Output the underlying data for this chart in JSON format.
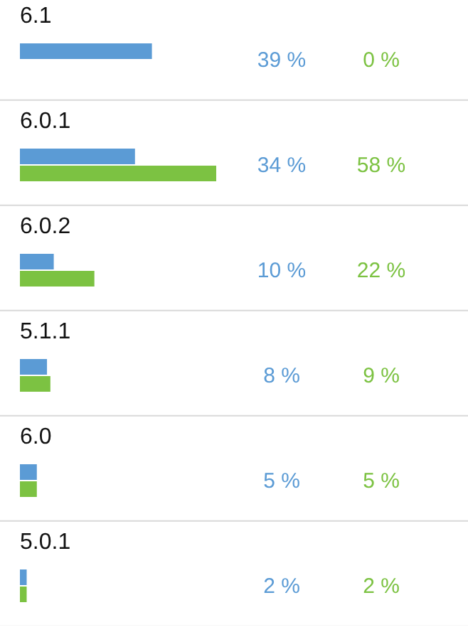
{
  "chart_data": {
    "type": "bar",
    "orientation": "horizontal",
    "categories": [
      "6.1",
      "6.0.1",
      "6.0.2",
      "5.1.1",
      "6.0",
      "5.0.1"
    ],
    "series": [
      {
        "color": "#5b9bd5",
        "values": [
          39,
          34,
          10,
          8,
          5,
          2
        ],
        "value_labels": [
          "39 %",
          "34 %",
          "10 %",
          "8 %",
          "5 %",
          "2 %"
        ]
      },
      {
        "color": "#7cc242",
        "values": [
          0,
          58,
          22,
          9,
          5,
          2
        ],
        "value_labels": [
          "0 %",
          "58 %",
          "22 %",
          "9 %",
          "5 %",
          "2 %"
        ]
      }
    ]
  }
}
